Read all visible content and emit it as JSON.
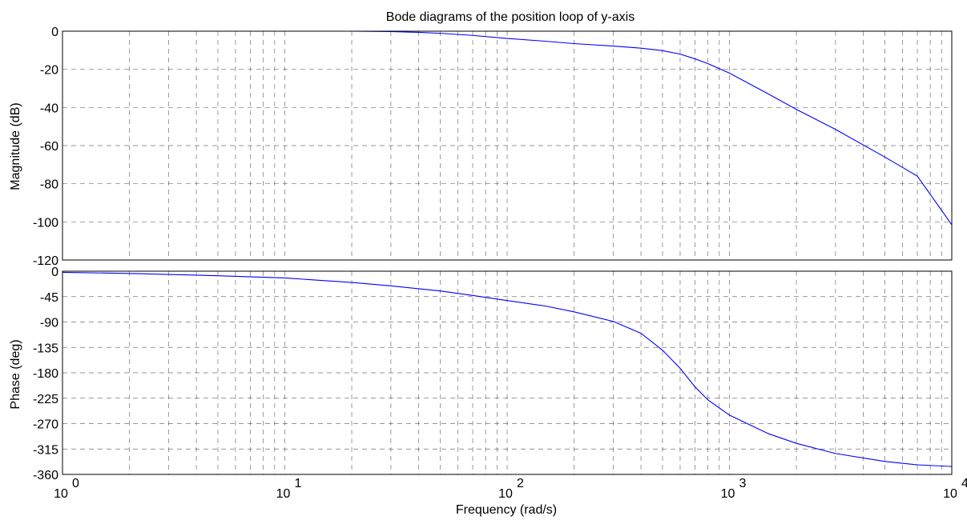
{
  "chart_data": {
    "type": "line",
    "title": "Bode diagrams of the position loop of y-axis",
    "xlabel": "Frequency  (rad/s)",
    "xscale": "log",
    "xlim": [
      1,
      10000
    ],
    "xticks": [
      1,
      10,
      100,
      1000,
      10000
    ],
    "xtick_labels": [
      {
        "base": "10",
        "exp": "0"
      },
      {
        "base": "10",
        "exp": "1"
      },
      {
        "base": "10",
        "exp": "2"
      },
      {
        "base": "10",
        "exp": "3"
      },
      {
        "base": "10",
        "exp": "4"
      }
    ],
    "grid": true,
    "series": [
      {
        "panel": "magnitude",
        "ylabel": "Magnitude (dB)",
        "ylim": [
          -120,
          0
        ],
        "yticks": [
          0,
          -20,
          -40,
          -60,
          -80,
          -100,
          -120
        ],
        "x": [
          1,
          10,
          20,
          30,
          40,
          50,
          70,
          100,
          150,
          200,
          300,
          400,
          500,
          600,
          700,
          800,
          1000,
          1500,
          2000,
          3000,
          5000,
          7000,
          10000
        ],
        "y": [
          0,
          0,
          0,
          -0.2,
          -0.6,
          -1.1,
          -2.2,
          -3.8,
          -5.3,
          -6.5,
          -7.8,
          -8.9,
          -10.2,
          -12,
          -14.5,
          -17,
          -22,
          -33,
          -41,
          -51.5,
          -66,
          -76,
          -101.5
        ]
      },
      {
        "panel": "phase",
        "ylabel": "Phase (deg)",
        "ylim": [
          -360,
          0
        ],
        "yticks": [
          0,
          -45,
          -90,
          -135,
          -180,
          -225,
          -270,
          -315,
          -360
        ],
        "x": [
          1,
          2,
          5,
          10,
          20,
          30,
          50,
          70,
          100,
          150,
          200,
          300,
          400,
          500,
          600,
          700,
          800,
          1000,
          1500,
          2000,
          3000,
          5000,
          7000,
          10000
        ],
        "y": [
          -2,
          -4,
          -8,
          -12,
          -20,
          -26,
          -35,
          -43,
          -52,
          -62,
          -72,
          -89,
          -110,
          -140,
          -172,
          -205,
          -228,
          -255,
          -288,
          -305,
          -323,
          -337,
          -343,
          -346
        ]
      }
    ]
  }
}
